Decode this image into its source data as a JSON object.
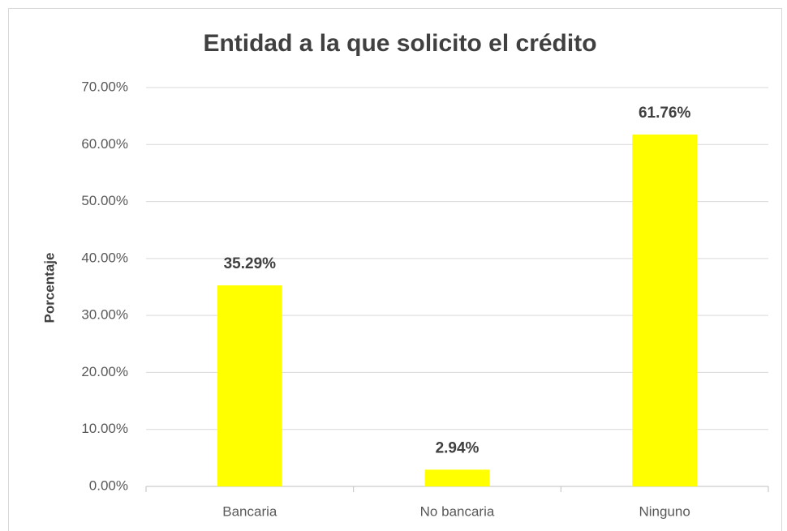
{
  "chart_data": {
    "type": "bar",
    "title": "Entidad a la que solicito el crédito",
    "y_label": "Porcentaje",
    "categories": [
      "Bancaria",
      "No bancaria",
      "Ninguno"
    ],
    "values": [
      35.29,
      2.94,
      61.76
    ],
    "value_labels": [
      "35.29%",
      "2.94%",
      "61.76%"
    ],
    "color": "#ffff00",
    "ylim": [
      0,
      70
    ],
    "yticks": [
      {
        "value": 0,
        "label": "0.00%"
      },
      {
        "value": 10,
        "label": "10.00%"
      },
      {
        "value": 20,
        "label": "20.00%"
      },
      {
        "value": 30,
        "label": "30.00%"
      },
      {
        "value": 40,
        "label": "40.00%"
      },
      {
        "value": 50,
        "label": "50.00%"
      },
      {
        "value": 60,
        "label": "60.00%"
      },
      {
        "value": 70,
        "label": "70.00%"
      }
    ],
    "grid": true
  }
}
